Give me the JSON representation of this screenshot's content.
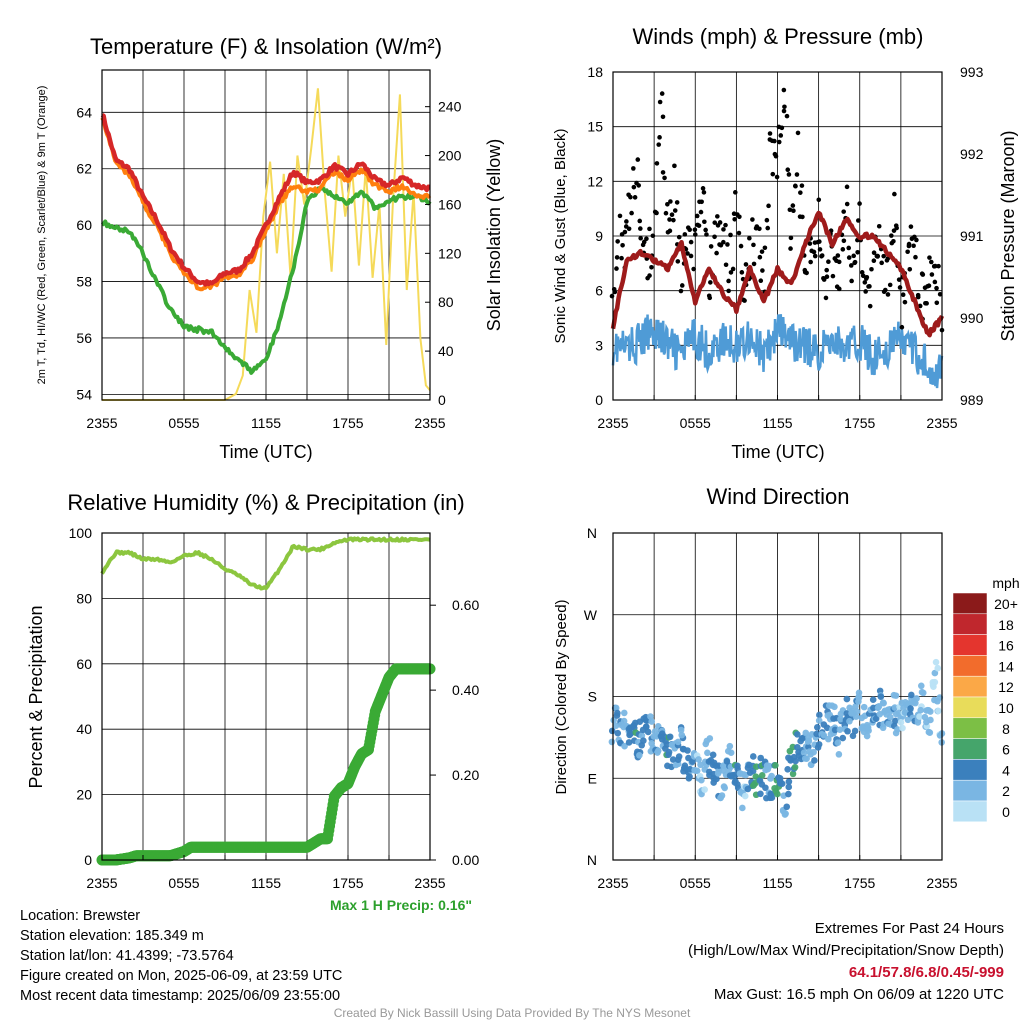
{
  "chart_data": [
    {
      "type": "line",
      "title": "Temperature (F) & Insolation (W/m²)",
      "xlabel": "Time (UTC)",
      "ylabel_left": "2m T, Td, HI/WC (Red, Green, Scarlet/Blue) & 9m T (Orange)",
      "ylabel_right": "Solar Insolation (Yellow)",
      "x_ticks": [
        "2355",
        "0555",
        "1155",
        "1755",
        "2355"
      ],
      "ylim": [
        53.8,
        65.5
      ],
      "y_ticks": [
        54,
        56,
        58,
        60,
        62,
        64
      ],
      "y2lim": [
        0,
        270
      ],
      "y2_ticks": [
        0,
        40,
        80,
        120,
        160,
        200,
        240
      ],
      "grid": true,
      "series": [
        {
          "color": "#d62728",
          "hours": [
            0,
            1,
            2,
            3,
            4,
            5,
            6,
            7,
            8,
            9,
            10,
            11,
            12,
            13,
            14,
            15,
            16,
            17,
            18,
            19,
            20,
            21,
            22,
            23,
            24
          ],
          "values": [
            64.0,
            62.3,
            62.0,
            61.0,
            60.2,
            59.2,
            58.5,
            58.0,
            57.9,
            58.3,
            58.4,
            59.0,
            60.0,
            61.0,
            61.9,
            61.5,
            61.6,
            62.1,
            61.8,
            62.2,
            61.6,
            61.4,
            61.7,
            61.4,
            61.3
          ]
        },
        {
          "color": "#ff7f0e",
          "hours": [
            0,
            1,
            2,
            3,
            4,
            5,
            6,
            7,
            8,
            9,
            10,
            11,
            12,
            13,
            14,
            15,
            16,
            17,
            18,
            19,
            20,
            21,
            22,
            23,
            24
          ],
          "values": [
            63.9,
            62.2,
            61.8,
            60.8,
            60.0,
            59.0,
            58.3,
            57.8,
            57.8,
            58.2,
            58.2,
            58.8,
            59.8,
            60.8,
            61.4,
            61.2,
            61.3,
            61.9,
            61.6,
            62.0,
            61.4,
            61.2,
            61.4,
            61.1,
            61.0
          ]
        },
        {
          "color": "#3aaa35",
          "hours": [
            0,
            1,
            2,
            3,
            4,
            5,
            6,
            7,
            8,
            9,
            10,
            11,
            12,
            13,
            14,
            15,
            16,
            17,
            18,
            19,
            20,
            21,
            22,
            23,
            24
          ],
          "values": [
            60.1,
            59.9,
            59.8,
            59.0,
            58.0,
            57.0,
            56.4,
            56.3,
            56.2,
            55.7,
            55.2,
            54.8,
            55.2,
            56.6,
            58.5,
            60.8,
            61.3,
            61.0,
            60.8,
            61.2,
            60.6,
            60.9,
            61.0,
            61.0,
            60.8
          ]
        },
        {
          "color": "#f5da5a",
          "hours": [
            0,
            2,
            4,
            6,
            7.2,
            8,
            9,
            9.8,
            10.3,
            10.8,
            11.3,
            11.8,
            12.3,
            12.8,
            13.3,
            13.8,
            14.3,
            14.8,
            15.3,
            15.8,
            16.3,
            16.8,
            17.3,
            17.8,
            18.3,
            18.8,
            19.3,
            19.8,
            20.3,
            20.8,
            21.3,
            21.8,
            22.3,
            22.8,
            23.3,
            23.7,
            24
          ],
          "values": [
            0,
            0,
            0,
            0,
            0,
            0,
            0,
            5,
            20,
            90,
            55,
            150,
            195,
            120,
            185,
            100,
            200,
            160,
            205,
            255,
            170,
            105,
            200,
            150,
            190,
            110,
            190,
            100,
            160,
            45,
            165,
            250,
            90,
            170,
            50,
            12,
            8
          ]
        }
      ]
    },
    {
      "type": "scatter",
      "title": "Winds (mph) & Pressure (mb)",
      "xlabel": "Time (UTC)",
      "ylabel_left": "Sonic Wind & Gust (Blue, Black)",
      "ylabel_right": "Station Pressure (Maroon)",
      "x_ticks": [
        "2355",
        "0555",
        "1155",
        "1755",
        "2355"
      ],
      "ylim": [
        0,
        18
      ],
      "y_ticks": [
        0,
        3,
        6,
        9,
        12,
        15,
        18
      ],
      "y2lim": [
        989,
        993
      ],
      "y2_ticks": [
        989,
        990,
        991,
        992,
        993
      ],
      "grid": true,
      "series": [
        {
          "name": "wind",
          "color": "#4f9bd6",
          "hours": [
            0,
            1,
            2,
            3,
            4,
            5,
            6,
            7,
            8,
            9,
            10,
            11,
            12,
            13,
            14,
            15,
            16,
            17,
            18,
            19,
            20,
            21,
            22,
            23,
            24
          ],
          "values": [
            3.0,
            2.8,
            3.2,
            4.0,
            3.0,
            2.5,
            3.5,
            2.6,
            3.2,
            3.0,
            3.6,
            2.4,
            3.8,
            3.2,
            3.0,
            2.6,
            3.4,
            2.8,
            3.2,
            2.4,
            2.8,
            3.4,
            2.6,
            2.0,
            1.4
          ]
        },
        {
          "name": "gust",
          "color": "#000000",
          "hours": [
            0,
            0.5,
            1,
            1.5,
            2,
            2.5,
            3,
            3.5,
            4,
            4.5,
            5,
            5.5,
            6,
            6.5,
            7,
            7.5,
            8,
            8.5,
            9,
            9.5,
            10,
            10.5,
            11,
            11.5,
            12,
            12.5,
            13,
            13.5,
            14,
            14.5,
            15,
            15.5,
            16,
            16.5,
            17,
            17.5,
            18,
            18.5,
            19,
            19.5,
            20,
            20.5,
            21,
            21.5,
            22,
            22.5,
            23,
            23.5,
            24
          ],
          "values": [
            6.5,
            9.0,
            8.0,
            13.0,
            10.5,
            7.5,
            9.0,
            16.0,
            8.5,
            11.5,
            7.0,
            9.5,
            8.0,
            12.0,
            6.5,
            8.5,
            9.0,
            7.0,
            10.5,
            6.0,
            8.0,
            9.5,
            6.5,
            14.0,
            12.5,
            16.5,
            9.0,
            13.5,
            7.5,
            8.0,
            10.0,
            6.5,
            8.5,
            7.0,
            11.0,
            6.5,
            9.5,
            5.5,
            7.0,
            9.0,
            6.0,
            10.5,
            5.0,
            7.5,
            8.5,
            5.5,
            7.0,
            8.0,
            4.5
          ]
        },
        {
          "name": "pressure",
          "color": "#9e1b1b",
          "axis": "right",
          "hours": [
            0,
            1,
            2,
            3,
            4,
            5,
            6,
            7,
            8,
            9,
            10,
            11,
            12,
            13,
            14,
            15,
            16,
            17,
            18,
            19,
            20,
            21,
            22,
            23,
            24
          ],
          "values": [
            989.9,
            990.7,
            990.8,
            990.7,
            990.6,
            990.9,
            990.2,
            990.6,
            990.3,
            990.1,
            990.6,
            990.2,
            990.6,
            990.4,
            990.9,
            991.3,
            990.9,
            991.2,
            991.0,
            991.0,
            990.8,
            990.6,
            990.2,
            989.8,
            990.0
          ]
        }
      ]
    },
    {
      "type": "line",
      "title": "Relative Humidity (%) & Precipitation (in)",
      "ylabel_left": "Percent & Precipitation",
      "x_ticks": [
        "2355",
        "0555",
        "1155",
        "1755",
        "2355"
      ],
      "ylim": [
        0,
        100
      ],
      "y_ticks": [
        0,
        20,
        40,
        60,
        80,
        100
      ],
      "y2lim": [
        0,
        0.77
      ],
      "y2_ticks": [
        "0.00",
        "0.20",
        "0.40",
        "0.60"
      ],
      "annotation": "Max 1 H Precip: 0.16\"",
      "grid": true,
      "series": [
        {
          "name": "rh",
          "color": "#8cc63f",
          "hours": [
            0,
            1,
            2,
            3,
            4,
            5,
            6,
            7,
            8,
            9,
            10,
            11,
            12,
            13,
            14,
            15,
            16,
            17,
            18,
            19,
            20,
            21,
            22,
            23,
            24
          ],
          "values": [
            88,
            94,
            94,
            92,
            92,
            91,
            93,
            94,
            92,
            89,
            87,
            84,
            83,
            89,
            96,
            95,
            95,
            97,
            98,
            98,
            98,
            98,
            98,
            98,
            98
          ]
        },
        {
          "name": "precip",
          "color": "#3aaa35",
          "axis": "right",
          "hours": [
            0,
            1,
            2,
            2.5,
            3,
            4,
            5,
            6,
            6.5,
            7,
            8,
            9,
            10,
            11,
            12,
            13,
            14,
            15,
            16,
            16.5,
            17,
            17.5,
            18,
            18.5,
            19,
            19.5,
            20,
            20.5,
            21,
            21.5,
            22,
            23,
            24
          ],
          "values": [
            0,
            0,
            0.005,
            0.01,
            0.01,
            0.01,
            0.01,
            0.02,
            0.03,
            0.03,
            0.03,
            0.03,
            0.03,
            0.03,
            0.03,
            0.03,
            0.03,
            0.03,
            0.05,
            0.05,
            0.15,
            0.17,
            0.18,
            0.22,
            0.25,
            0.26,
            0.35,
            0.39,
            0.43,
            0.45,
            0.45,
            0.45,
            0.45
          ]
        }
      ]
    },
    {
      "type": "scatter",
      "title": "Wind Direction",
      "ylabel_left": "Direction (Colored By Speed)",
      "x_ticks": [
        "2355",
        "0555",
        "1155",
        "1755",
        "2355"
      ],
      "y_ticks": [
        "N",
        "E",
        "S",
        "W",
        "N"
      ],
      "grid": true,
      "legend": {
        "title": "mph",
        "labels": [
          "20+",
          "18",
          "16",
          "14",
          "12",
          "10",
          "8",
          "6",
          "4",
          "2",
          "0"
        ],
        "colors": [
          "#8b1a1a",
          "#c0272d",
          "#e4352e",
          "#f26c2c",
          "#fba847",
          "#e8dc5a",
          "#7cbf45",
          "#45a56b",
          "#3b80bd",
          "#7ab6e3",
          "#b9e1f5"
        ]
      },
      "series": [
        {
          "hours": [
            0,
            0.5,
            1,
            1.5,
            2,
            2.5,
            3,
            3.5,
            4,
            4.5,
            5,
            5.5,
            6,
            6.5,
            7,
            7.5,
            8,
            8.5,
            9,
            9.5,
            10,
            10.5,
            11,
            11.5,
            12,
            12.5,
            13,
            13.5,
            14,
            14.5,
            15,
            15.5,
            16,
            16.5,
            17,
            17.5,
            18,
            18.5,
            19,
            19.5,
            20,
            20.5,
            21,
            21.5,
            22,
            22.5,
            23,
            23.5,
            24
          ],
          "deg": [
            150,
            145,
            140,
            130,
            135,
            148,
            125,
            140,
            120,
            112,
            130,
            95,
            100,
            85,
            118,
            92,
            80,
            115,
            90,
            70,
            105,
            88,
            96,
            78,
            92,
            60,
            110,
            125,
            130,
            118,
            140,
            150,
            155,
            135,
            165,
            150,
            170,
            140,
            160,
            172,
            150,
            168,
            145,
            175,
            160,
            180,
            150,
            210,
            120
          ],
          "speed": [
            3,
            4,
            2,
            5,
            3,
            4,
            2,
            3,
            5,
            2,
            3,
            4,
            2,
            1,
            3,
            4,
            2,
            3,
            5,
            1,
            3,
            6,
            4,
            2,
            6,
            3,
            5,
            4,
            3,
            2,
            4,
            3,
            2,
            3,
            4,
            2,
            3,
            2,
            4,
            3,
            2,
            3,
            1,
            2,
            3,
            1,
            2,
            0,
            2
          ]
        }
      ]
    }
  ],
  "info": {
    "location": "Location: Brewster",
    "elevation": "Station elevation: 185.349 m",
    "latlon": "Station lat/lon: 41.4399; -73.5764",
    "created": "Figure created on Mon, 2025-06-09, at 23:59 UTC",
    "recent": "Most recent data timestamp: 2025/06/09 23:55:00",
    "extremes_title": "Extremes For Past 24 Hours",
    "extremes_sub": "(High/Low/Max Wind/Precipitation/Snow Depth)",
    "extremes_values": "64.1/57.8/6.8/0.45/-999",
    "max_gust": "Max Gust: 16.5 mph On 06/09 at 1220 UTC",
    "credit": "Created By Nick Bassill Using Data Provided By The NYS Mesonet"
  }
}
